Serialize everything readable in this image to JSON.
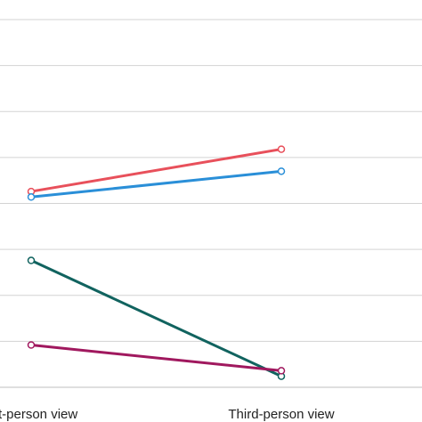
{
  "chart_data": {
    "type": "line",
    "categories": [
      "First-person view",
      "Third-person view"
    ],
    "category_labels_shown": [
      "t-person view",
      "Third-person view"
    ],
    "grid": true,
    "series": [
      {
        "color": "#e8505b",
        "values": [
          0.63,
          1.09
        ]
      },
      {
        "color": "#2a8fd8",
        "values": [
          0.57,
          0.85
        ]
      },
      {
        "color": "#11635f",
        "values": [
          -0.12,
          -1.38
        ]
      },
      {
        "color": "#a0185e",
        "values": [
          -1.04,
          -1.32
        ]
      }
    ],
    "ylim": [
      -1.5,
      2.5
    ],
    "gridlines": [
      2.5,
      2.0,
      1.5,
      1.0,
      0.5,
      0.0,
      -0.5,
      -1.0,
      -1.5
    ]
  }
}
